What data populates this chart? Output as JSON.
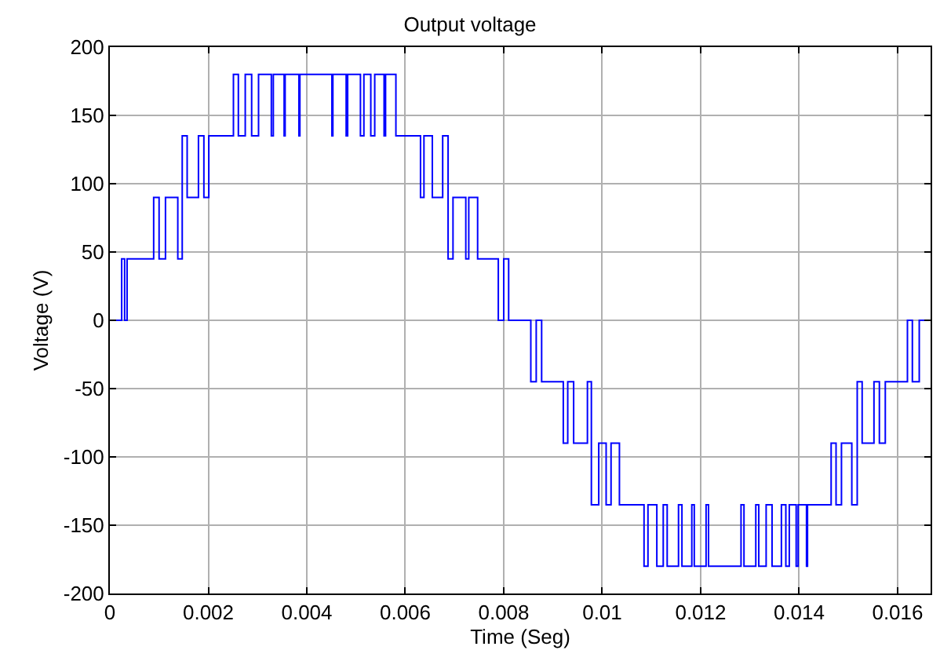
{
  "chart_data": {
    "type": "step",
    "title": "Output voltage",
    "xlabel": "Time (Seg)",
    "ylabel": "Voltage (V)",
    "xlim": [
      0,
      0.01667
    ],
    "xticks": [
      0,
      0.002,
      0.004,
      0.006,
      0.008,
      0.01,
      0.012,
      0.014,
      0.016
    ],
    "ylim": [
      -200,
      200
    ],
    "yticks": [
      -200,
      -150,
      -100,
      -50,
      0,
      50,
      100,
      150,
      200
    ],
    "grid": true,
    "line_style": "solid",
    "marker": "none",
    "series": [
      {
        "color": "#0000ff",
        "x": [
          0,
          0.00024,
          0.0003,
          0.00035,
          0.00089,
          0.001,
          0.00113,
          0.00138,
          0.00147,
          0.00157,
          0.0018,
          0.00191,
          0.00201,
          0.00251,
          0.00261,
          0.00275,
          0.00288,
          0.00302,
          0.00328,
          0.00332,
          0.00354,
          0.00356,
          0.00384,
          0.00386,
          0.00451,
          0.00453,
          0.0048,
          0.00483,
          0.00509,
          0.00516,
          0.0053,
          0.00538,
          0.00557,
          0.0056,
          0.00581,
          0.00631,
          0.00638,
          0.00655,
          0.00676,
          0.00687,
          0.00697,
          0.00723,
          0.00729,
          0.00747,
          0.00789,
          0.008,
          0.0081,
          0.00855,
          0.00866,
          0.00877,
          0.00921,
          0.0093,
          0.00942,
          0.0097,
          0.00978,
          0.00993,
          0.01008,
          0.01018,
          0.01035,
          0.01085,
          0.01093,
          0.01111,
          0.01124,
          0.01132,
          0.01155,
          0.01162,
          0.01182,
          0.01187,
          0.01211,
          0.01216,
          0.01282,
          0.01288,
          0.01312,
          0.01318,
          0.01333,
          0.01345,
          0.01364,
          0.01373,
          0.0138,
          0.01394,
          0.01398,
          0.01415,
          0.01417,
          0.01465,
          0.01475,
          0.01486,
          0.01507,
          0.01518,
          0.01528,
          0.01552,
          0.01563,
          0.01575,
          0.0162,
          0.0163,
          0.01644,
          0.01667
        ],
        "values": [
          0,
          45,
          0,
          45,
          90,
          45,
          90,
          45,
          135,
          90,
          135,
          90,
          135,
          180,
          135,
          180,
          135,
          180,
          135,
          180,
          135,
          180,
          135,
          180,
          135,
          180,
          135,
          180,
          135,
          180,
          135,
          180,
          135,
          180,
          135,
          90,
          135,
          90,
          135,
          45,
          90,
          45,
          90,
          45,
          0,
          45,
          0,
          -45,
          0,
          -45,
          -90,
          -45,
          -90,
          -45,
          -135,
          -90,
          -135,
          -90,
          -135,
          -180,
          -135,
          -180,
          -135,
          -180,
          -135,
          -180,
          -135,
          -180,
          -135,
          -180,
          -135,
          -180,
          -135,
          -180,
          -135,
          -180,
          -135,
          -180,
          -135,
          -180,
          -135,
          -180,
          -135,
          -90,
          -135,
          -90,
          -135,
          -45,
          -90,
          -45,
          -90,
          -45,
          0,
          -45,
          0,
          0
        ]
      }
    ]
  }
}
